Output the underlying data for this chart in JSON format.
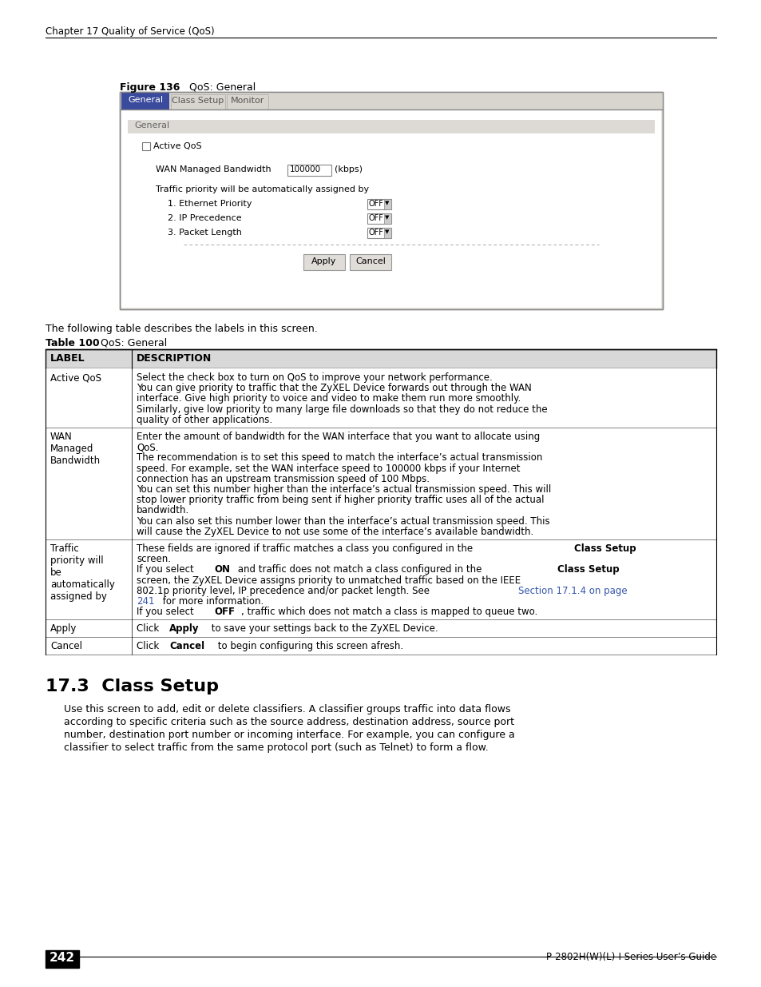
{
  "page_bg": "#ffffff",
  "header_text": "Chapter 17 Quality of Service (QoS)",
  "footer_page": "242",
  "footer_right": "P-2802H(W)(L)-I Series User’s Guide",
  "tab_active_bg": "#3a4a9c",
  "tab_inactive_bg": "#d8d4ce",
  "tab_active_fg": "#ffffff",
  "tab_inactive_fg": "#555555",
  "ui_bg": "#f0eeea",
  "ui_section_bg": "#dddad5",
  "ui_white": "#ffffff",
  "table_rows": [
    {
      "label": "Active QoS",
      "desc_parts": [
        [
          [
            "Select the check box to turn on QoS to improve your network performance."
          ]
        ],
        [
          [
            "You can give priority to traffic that the ZyXEL Device forwards out through the WAN"
          ]
        ],
        [
          [
            "interface. Give high priority to voice and video to make them run more smoothly."
          ]
        ],
        [
          [
            "Similarly, give low priority to many large file downloads so that they do not reduce the"
          ]
        ],
        [
          [
            "quality of other applications."
          ]
        ]
      ]
    },
    {
      "label": "WAN\nManaged\nBandwidth",
      "desc_parts": [
        [
          [
            "Enter the amount of bandwidth for the WAN interface that you want to allocate using"
          ]
        ],
        [
          [
            "QoS."
          ]
        ],
        [
          [
            "The recommendation is to set this speed to match the interface’s actual transmission"
          ]
        ],
        [
          [
            "speed. For example, set the WAN interface speed to 100000 kbps if your Internet"
          ]
        ],
        [
          [
            "connection has an upstream transmission speed of 100 Mbps."
          ]
        ],
        [
          [
            "You can set this number higher than the interface’s actual transmission speed. This will"
          ]
        ],
        [
          [
            "stop lower priority traffic from being sent if higher priority traffic uses all of the actual"
          ]
        ],
        [
          [
            "bandwidth."
          ]
        ],
        [
          [
            "You can also set this number lower than the interface’s actual transmission speed. This"
          ]
        ],
        [
          [
            "will cause the ZyXEL Device to not use some of the interface’s available bandwidth."
          ]
        ]
      ]
    },
    {
      "label": "Traffic\npriority will\nbe\nautomatically\nassigned by",
      "desc_parts": [
        [
          [
            "These fields are ignored if traffic matches a class you configured in the "
          ],
          [
            "Class Setup",
            true
          ]
        ],
        [
          [
            "screen."
          ]
        ],
        [
          [
            "If you select "
          ],
          [
            "ON",
            true
          ],
          [
            " and traffic does not match a class configured in the "
          ],
          [
            "Class Setup",
            true
          ]
        ],
        [
          [
            "screen, the ZyXEL Device assigns priority to unmatched traffic based on the IEEE"
          ]
        ],
        [
          [
            "802.1p priority level, IP precedence and/or packet length. See "
          ],
          [
            "Section 17.1.4 on page",
            false,
            "#3355aa"
          ]
        ],
        [
          [
            "241",
            false,
            "#3355aa"
          ],
          [
            " for more information."
          ]
        ],
        [
          [
            "If you select "
          ],
          [
            "OFF",
            true
          ],
          [
            ", traffic which does not match a class is mapped to queue two."
          ]
        ]
      ]
    },
    {
      "label": "Apply",
      "desc_parts": [
        [
          [
            "Click "
          ],
          [
            "Apply",
            true
          ],
          [
            " to save your settings back to the ZyXEL Device."
          ]
        ]
      ]
    },
    {
      "label": "Cancel",
      "desc_parts": [
        [
          [
            "Click "
          ],
          [
            "Cancel",
            true
          ],
          [
            " to begin configuring this screen afresh."
          ]
        ]
      ]
    }
  ]
}
